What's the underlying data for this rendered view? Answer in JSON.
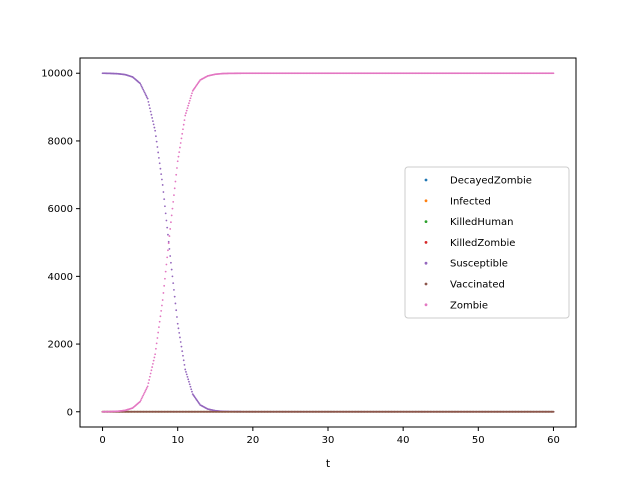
{
  "chart_data": {
    "type": "scatter",
    "title": "",
    "xlabel": "t",
    "ylabel": "",
    "xlim": [
      -3,
      63
    ],
    "ylim": [
      -450,
      10450
    ],
    "xticks": [
      0,
      10,
      20,
      30,
      40,
      50,
      60
    ],
    "yticks": [
      0,
      2000,
      4000,
      6000,
      8000,
      10000
    ],
    "xtick_labels": [
      "0",
      "10",
      "20",
      "30",
      "40",
      "50",
      "60"
    ],
    "ytick_labels": [
      "0",
      "2000",
      "4000",
      "6000",
      "8000",
      "10000"
    ],
    "grid": false,
    "legend_position": "center-right",
    "x": [
      0,
      1,
      2,
      3,
      4,
      5,
      6,
      7,
      8,
      9,
      10,
      11,
      12,
      13,
      14,
      15,
      16,
      17,
      18,
      20,
      25,
      30,
      35,
      40,
      45,
      50,
      55,
      60
    ],
    "series": [
      {
        "name": "DecayedZombie",
        "color": "#1f77b4",
        "values": [
          0,
          0,
          0,
          0,
          0,
          0,
          0,
          0,
          0,
          0,
          0,
          0,
          0,
          0,
          0,
          0,
          0,
          0,
          0,
          0,
          0,
          0,
          0,
          0,
          0,
          0,
          0,
          0
        ]
      },
      {
        "name": "Infected",
        "color": "#ff7f0e",
        "values": [
          0,
          0,
          0,
          0,
          0,
          0,
          0,
          0,
          0,
          0,
          0,
          0,
          0,
          0,
          0,
          0,
          0,
          0,
          0,
          0,
          0,
          0,
          0,
          0,
          0,
          0,
          0,
          0
        ]
      },
      {
        "name": "KilledHuman",
        "color": "#2ca02c",
        "values": [
          0,
          0,
          0,
          0,
          0,
          0,
          0,
          0,
          0,
          0,
          0,
          0,
          0,
          0,
          0,
          0,
          0,
          0,
          0,
          0,
          0,
          0,
          0,
          0,
          0,
          0,
          0,
          0
        ]
      },
      {
        "name": "KilledZombie",
        "color": "#d62728",
        "values": [
          0,
          0,
          0,
          0,
          0,
          0,
          0,
          0,
          0,
          0,
          0,
          0,
          0,
          0,
          0,
          0,
          0,
          0,
          0,
          0,
          0,
          0,
          0,
          0,
          0,
          0,
          0,
          0
        ]
      },
      {
        "name": "Susceptible",
        "color": "#9467bd",
        "values": [
          10000,
          9995,
          9985,
          9960,
          9890,
          9700,
          9250,
          8300,
          6700,
          4600,
          2600,
          1250,
          520,
          200,
          80,
          30,
          10,
          4,
          2,
          0,
          0,
          0,
          0,
          0,
          0,
          0,
          0,
          0
        ]
      },
      {
        "name": "Vaccinated",
        "color": "#8c564b",
        "values": [
          0,
          0,
          0,
          0,
          0,
          0,
          0,
          0,
          0,
          0,
          0,
          0,
          0,
          0,
          0,
          0,
          0,
          0,
          0,
          0,
          0,
          0,
          0,
          0,
          0,
          0,
          0,
          0
        ]
      },
      {
        "name": "Zombie",
        "color": "#e377c2",
        "values": [
          0,
          5,
          15,
          40,
          110,
          300,
          750,
          1700,
          3300,
          5400,
          7400,
          8750,
          9480,
          9800,
          9920,
          9970,
          9990,
          9996,
          9998,
          10000,
          10000,
          10000,
          10000,
          10000,
          10000,
          10000,
          10000,
          10000
        ]
      }
    ]
  }
}
